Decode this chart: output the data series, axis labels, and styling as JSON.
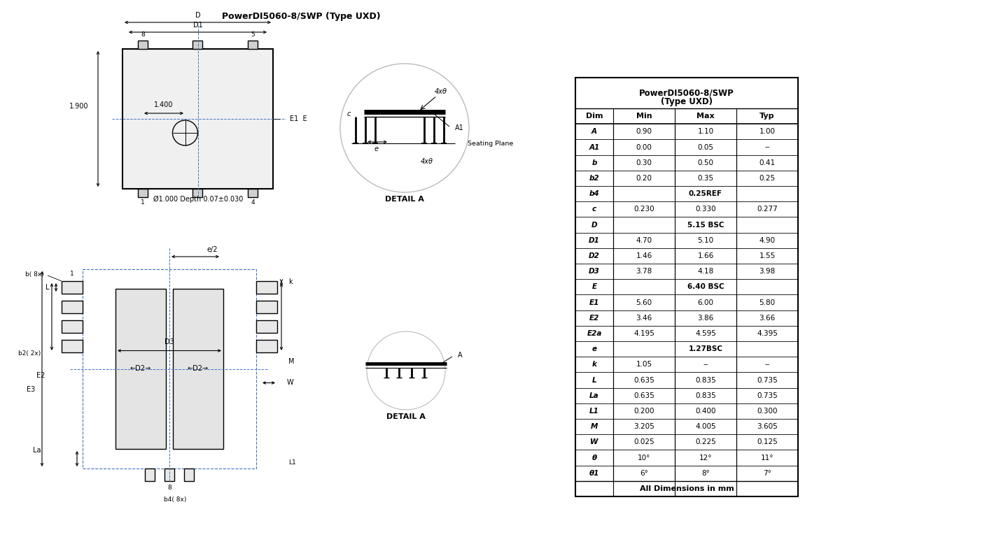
{
  "title": "PowerDI5060-8/SWP (Type UXD)",
  "col_headers": [
    "Dim",
    "Min",
    "Max",
    "Typ"
  ],
  "rows": [
    [
      "A",
      "0.90",
      "1.10",
      "1.00"
    ],
    [
      "A1",
      "0.00",
      "0.05",
      "--"
    ],
    [
      "b",
      "0.30",
      "0.50",
      "0.41"
    ],
    [
      "b2",
      "0.20",
      "0.35",
      "0.25"
    ],
    [
      "b4",
      "0.25REF",
      "",
      ""
    ],
    [
      "c",
      "0.230",
      "0.330",
      "0.277"
    ],
    [
      "D",
      "5.15 BSC",
      "",
      ""
    ],
    [
      "D1",
      "4.70",
      "5.10",
      "4.90"
    ],
    [
      "D2",
      "1.46",
      "1.66",
      "1.55"
    ],
    [
      "D3",
      "3.78",
      "4.18",
      "3.98"
    ],
    [
      "E",
      "6.40 BSC",
      "",
      ""
    ],
    [
      "E1",
      "5.60",
      "6.00",
      "5.80"
    ],
    [
      "E2",
      "3.46",
      "3.86",
      "3.66"
    ],
    [
      "E2a",
      "4.195",
      "4.595",
      "4.395"
    ],
    [
      "e",
      "1.27BSC",
      "",
      ""
    ],
    [
      "k",
      "1.05",
      "--",
      "--"
    ],
    [
      "L",
      "0.635",
      "0.835",
      "0.735"
    ],
    [
      "La",
      "0.635",
      "0.835",
      "0.735"
    ],
    [
      "L1",
      "0.200",
      "0.400",
      "0.300"
    ],
    [
      "M",
      "3.205",
      "4.005",
      "3.605"
    ],
    [
      "W",
      "0.025",
      "0.225",
      "0.125"
    ],
    [
      "θ",
      "10°",
      "12°",
      "11°"
    ],
    [
      "θ1",
      "6°",
      "8°",
      "7°"
    ]
  ],
  "footer": "All Dimensions in mm",
  "merged_rows": [
    "b4",
    "D",
    "E",
    "e"
  ],
  "bg_color": "#ffffff",
  "line_color": "#000000",
  "blue_color": "#4472c4",
  "text_color": "#000000"
}
